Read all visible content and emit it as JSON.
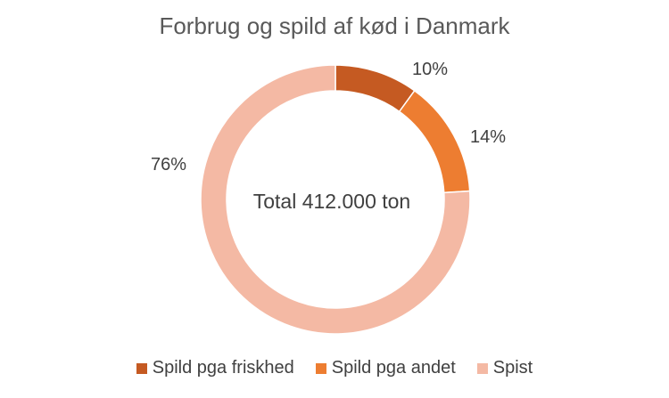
{
  "chart_data": {
    "type": "pie",
    "variant": "donut",
    "title": "Forbrug og spild af kød i Danmark",
    "center_label": "Total 412.000 ton",
    "categories": [
      "Spild pga friskhed",
      "Spild pga andet",
      "Spist"
    ],
    "values": [
      10,
      14,
      76
    ],
    "data_labels": [
      "10%",
      "14%",
      "76%"
    ],
    "colors": [
      "#c55a22",
      "#ed7d31",
      "#f4b9a4"
    ],
    "legend_position": "bottom",
    "unit": "%"
  }
}
